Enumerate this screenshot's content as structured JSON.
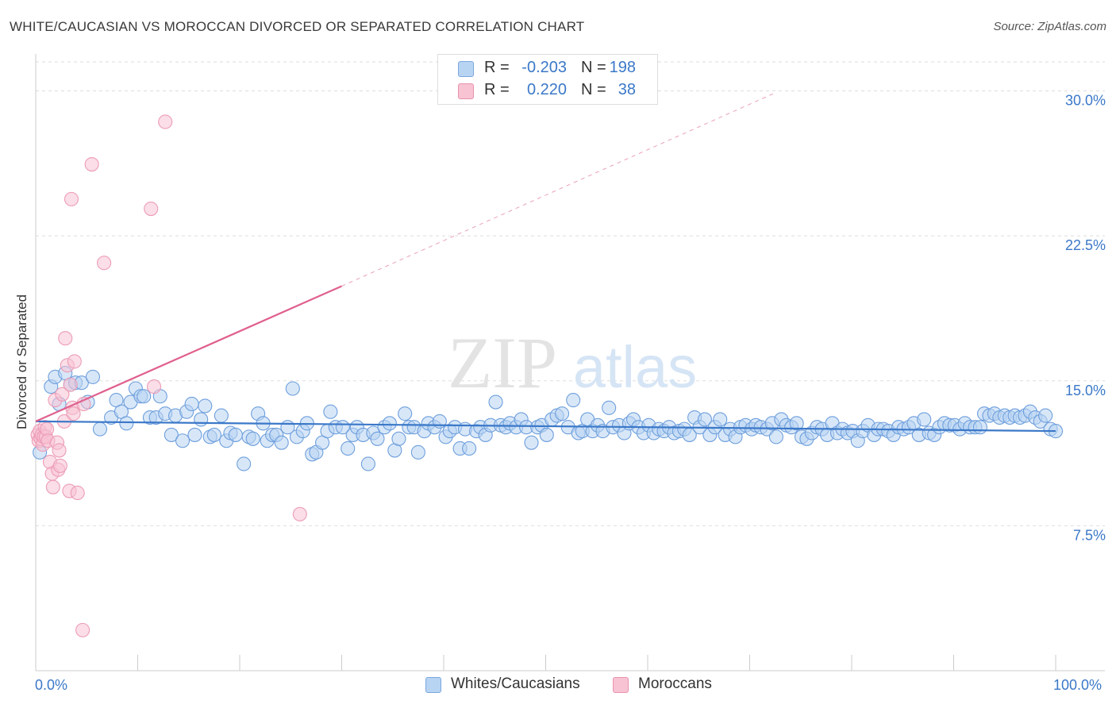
{
  "title": "WHITE/CAUCASIAN VS MOROCCAN DIVORCED OR SEPARATED CORRELATION CHART",
  "source": "Source: ZipAtlas.com",
  "watermark": {
    "zip": "ZIP",
    "atlas": "atlas"
  },
  "legend_top": {
    "rows": [
      {
        "r_label": "R =",
        "r_value": "-0.203",
        "n_label": "N =",
        "n_value": "198"
      },
      {
        "r_label": "R =",
        "r_value": "0.220",
        "n_label": "N =",
        "n_value": "38"
      }
    ]
  },
  "colors": {
    "blue": "#3b78c8",
    "blue_fill": "#b8d4f3",
    "pink": "#e0608e",
    "pink_fill": "#f8c3d3",
    "grid": "#dddddd"
  },
  "chart_data": {
    "type": "scatter",
    "title": "WHITE/CAUCASIAN VS MOROCCAN DIVORCED OR SEPARATED CORRELATION CHART",
    "ylabel": "Divorced or Separated",
    "xlabel": "",
    "xlim": [
      0,
      100
    ],
    "ylim": [
      0,
      31.5
    ],
    "y_ticks": [
      "7.5%",
      "15.0%",
      "22.5%",
      "30.0%"
    ],
    "y_tick_values": [
      7.5,
      15.0,
      22.5,
      30.0
    ],
    "x_tick_labels": [
      "0.0%",
      "100.0%"
    ],
    "grid": true,
    "legend_position": "bottom",
    "series": [
      {
        "name": "Whites/Caucasians",
        "color": "#3b78c8",
        "trend": {
          "x": [
            0,
            100
          ],
          "y": [
            12.9,
            12.4
          ]
        },
        "points": [
          [
            0.4,
            11.3
          ],
          [
            1.5,
            14.7
          ],
          [
            1.9,
            15.2
          ],
          [
            2.3,
            13.8
          ],
          [
            2.9,
            15.4
          ],
          [
            3.4,
            14.8
          ],
          [
            3.9,
            14.9
          ],
          [
            4.5,
            14.9
          ],
          [
            5.1,
            13.9
          ],
          [
            5.6,
            15.2
          ],
          [
            6.3,
            12.5
          ],
          [
            7.4,
            13.1
          ],
          [
            7.9,
            14.0
          ],
          [
            8.4,
            13.4
          ],
          [
            8.9,
            12.8
          ],
          [
            9.3,
            13.9
          ],
          [
            9.8,
            14.6
          ],
          [
            10.3,
            14.2
          ],
          [
            10.6,
            14.2
          ],
          [
            11.2,
            13.1
          ],
          [
            11.8,
            13.1
          ],
          [
            12.2,
            14.2
          ],
          [
            12.7,
            13.3
          ],
          [
            13.3,
            12.2
          ],
          [
            13.7,
            13.2
          ],
          [
            14.4,
            11.9
          ],
          [
            14.8,
            13.4
          ],
          [
            15.3,
            13.8
          ],
          [
            15.6,
            12.2
          ],
          [
            16.2,
            13.0
          ],
          [
            16.6,
            13.7
          ],
          [
            17.1,
            12.1
          ],
          [
            17.5,
            12.2
          ],
          [
            18.2,
            13.2
          ],
          [
            18.7,
            11.9
          ],
          [
            19.1,
            12.3
          ],
          [
            19.6,
            12.2
          ],
          [
            20.4,
            10.7
          ],
          [
            20.9,
            12.1
          ],
          [
            21.3,
            12.0
          ],
          [
            21.8,
            13.3
          ],
          [
            22.3,
            12.8
          ],
          [
            22.7,
            11.9
          ],
          [
            23.2,
            12.2
          ],
          [
            23.6,
            12.2
          ],
          [
            24.1,
            11.8
          ],
          [
            24.7,
            12.6
          ],
          [
            25.2,
            14.6
          ],
          [
            25.6,
            12.1
          ],
          [
            26.2,
            12.4
          ],
          [
            26.6,
            12.8
          ],
          [
            27.1,
            11.2
          ],
          [
            27.5,
            11.3
          ],
          [
            28.1,
            11.8
          ],
          [
            28.6,
            12.4
          ],
          [
            28.9,
            13.4
          ],
          [
            29.4,
            12.6
          ],
          [
            30.1,
            12.6
          ],
          [
            30.6,
            11.5
          ],
          [
            31.1,
            12.2
          ],
          [
            31.5,
            12.6
          ],
          [
            32.1,
            12.2
          ],
          [
            32.6,
            10.7
          ],
          [
            33.1,
            12.3
          ],
          [
            33.5,
            12.0
          ],
          [
            34.2,
            12.6
          ],
          [
            34.7,
            12.8
          ],
          [
            35.2,
            11.4
          ],
          [
            35.6,
            12.0
          ],
          [
            36.2,
            13.3
          ],
          [
            36.6,
            12.6
          ],
          [
            37.1,
            12.6
          ],
          [
            37.5,
            11.3
          ],
          [
            38.1,
            12.4
          ],
          [
            38.5,
            12.8
          ],
          [
            39.1,
            12.6
          ],
          [
            39.6,
            12.9
          ],
          [
            40.2,
            12.1
          ],
          [
            40.6,
            12.4
          ],
          [
            41.1,
            12.6
          ],
          [
            41.6,
            11.5
          ],
          [
            42.1,
            12.5
          ],
          [
            42.5,
            11.5
          ],
          [
            43.2,
            12.4
          ],
          [
            43.6,
            12.6
          ],
          [
            44.1,
            12.2
          ],
          [
            44.6,
            12.7
          ],
          [
            45.1,
            13.9
          ],
          [
            45.6,
            12.7
          ],
          [
            46.1,
            12.6
          ],
          [
            46.5,
            12.8
          ],
          [
            47.1,
            12.6
          ],
          [
            47.6,
            13.0
          ],
          [
            48.1,
            12.6
          ],
          [
            48.6,
            11.8
          ],
          [
            49.2,
            12.6
          ],
          [
            49.6,
            12.7
          ],
          [
            50.1,
            12.2
          ],
          [
            50.6,
            13.0
          ],
          [
            51.1,
            13.2
          ],
          [
            51.6,
            13.3
          ],
          [
            52.2,
            12.6
          ],
          [
            52.7,
            14.0
          ],
          [
            53.2,
            12.3
          ],
          [
            53.6,
            12.4
          ],
          [
            54.1,
            13.0
          ],
          [
            54.6,
            12.4
          ],
          [
            55.1,
            12.7
          ],
          [
            55.6,
            12.4
          ],
          [
            56.2,
            13.6
          ],
          [
            56.6,
            12.6
          ],
          [
            57.2,
            12.7
          ],
          [
            57.7,
            12.3
          ],
          [
            58.2,
            12.8
          ],
          [
            58.6,
            13.0
          ],
          [
            59.1,
            12.6
          ],
          [
            59.6,
            12.3
          ],
          [
            60.1,
            12.7
          ],
          [
            60.6,
            12.3
          ],
          [
            61.1,
            12.5
          ],
          [
            61.6,
            12.4
          ],
          [
            62.1,
            12.6
          ],
          [
            62.6,
            12.3
          ],
          [
            63.1,
            12.4
          ],
          [
            63.6,
            12.5
          ],
          [
            64.1,
            12.2
          ],
          [
            64.6,
            13.1
          ],
          [
            65.1,
            12.6
          ],
          [
            65.6,
            13.0
          ],
          [
            66.1,
            12.2
          ],
          [
            66.6,
            12.6
          ],
          [
            67.1,
            13.0
          ],
          [
            67.6,
            12.2
          ],
          [
            68.1,
            12.5
          ],
          [
            68.6,
            12.1
          ],
          [
            69.1,
            12.6
          ],
          [
            69.6,
            12.7
          ],
          [
            70.2,
            12.5
          ],
          [
            70.6,
            12.7
          ],
          [
            71.1,
            12.6
          ],
          [
            71.7,
            12.5
          ],
          [
            72.2,
            12.8
          ],
          [
            72.6,
            12.1
          ],
          [
            73.1,
            13.0
          ],
          [
            73.6,
            12.7
          ],
          [
            74.1,
            12.6
          ],
          [
            74.6,
            12.8
          ],
          [
            75.1,
            12.1
          ],
          [
            75.6,
            12.0
          ],
          [
            76.1,
            12.3
          ],
          [
            76.6,
            12.6
          ],
          [
            77.1,
            12.5
          ],
          [
            77.6,
            12.2
          ],
          [
            78.1,
            12.8
          ],
          [
            78.6,
            12.3
          ],
          [
            79.1,
            12.5
          ],
          [
            79.6,
            12.3
          ],
          [
            80.1,
            12.4
          ],
          [
            80.6,
            11.9
          ],
          [
            81.1,
            12.4
          ],
          [
            81.6,
            12.7
          ],
          [
            82.2,
            12.2
          ],
          [
            82.6,
            12.5
          ],
          [
            83.1,
            12.5
          ],
          [
            83.6,
            12.4
          ],
          [
            84.1,
            12.2
          ],
          [
            84.6,
            12.6
          ],
          [
            85.1,
            12.5
          ],
          [
            85.6,
            12.6
          ],
          [
            86.1,
            12.8
          ],
          [
            86.6,
            12.2
          ],
          [
            87.1,
            13.0
          ],
          [
            87.6,
            12.3
          ],
          [
            88.1,
            12.2
          ],
          [
            88.6,
            12.6
          ],
          [
            89.1,
            12.8
          ],
          [
            89.6,
            12.7
          ],
          [
            90.1,
            12.7
          ],
          [
            90.6,
            12.5
          ],
          [
            91.1,
            12.8
          ],
          [
            91.6,
            12.6
          ],
          [
            92.1,
            12.6
          ],
          [
            92.6,
            12.6
          ],
          [
            93.0,
            13.3
          ],
          [
            93.5,
            13.2
          ],
          [
            94.0,
            13.3
          ],
          [
            94.5,
            13.1
          ],
          [
            95.0,
            13.2
          ],
          [
            95.5,
            13.1
          ],
          [
            96.0,
            13.2
          ],
          [
            96.5,
            13.1
          ],
          [
            97.0,
            13.2
          ],
          [
            97.5,
            13.4
          ],
          [
            98.0,
            13.1
          ],
          [
            98.5,
            12.9
          ],
          [
            99.0,
            13.2
          ],
          [
            99.5,
            12.5
          ],
          [
            100,
            12.4
          ]
        ]
      },
      {
        "name": "Moroccans",
        "color": "#e0608e",
        "trend": {
          "x": [
            0,
            30
          ],
          "y": [
            12.9,
            19.9
          ],
          "dashed_to": {
            "x": 72.5,
            "y": 29.9
          }
        },
        "points": [
          [
            0.2,
            12.2
          ],
          [
            0.3,
            11.9
          ],
          [
            0.4,
            12.4
          ],
          [
            0.5,
            12.0
          ],
          [
            0.6,
            12.2
          ],
          [
            0.7,
            11.7
          ],
          [
            0.8,
            12.1
          ],
          [
            0.9,
            12.6
          ],
          [
            1.0,
            12.1
          ],
          [
            1.1,
            12.5
          ],
          [
            1.2,
            11.9
          ],
          [
            1.4,
            10.8
          ],
          [
            1.6,
            10.2
          ],
          [
            1.7,
            9.5
          ],
          [
            1.9,
            14.0
          ],
          [
            2.1,
            11.8
          ],
          [
            2.2,
            10.4
          ],
          [
            2.3,
            11.4
          ],
          [
            2.4,
            10.6
          ],
          [
            2.6,
            14.3
          ],
          [
            2.8,
            12.9
          ],
          [
            2.9,
            17.2
          ],
          [
            3.1,
            15.8
          ],
          [
            3.3,
            9.3
          ],
          [
            3.4,
            14.8
          ],
          [
            3.5,
            24.4
          ],
          [
            3.6,
            13.6
          ],
          [
            3.7,
            13.3
          ],
          [
            3.8,
            16.0
          ],
          [
            4.1,
            9.2
          ],
          [
            4.6,
            2.1
          ],
          [
            4.7,
            13.8
          ],
          [
            5.5,
            26.2
          ],
          [
            6.7,
            21.1
          ],
          [
            11.3,
            23.9
          ],
          [
            11.6,
            14.7
          ],
          [
            12.7,
            28.4
          ],
          [
            25.9,
            8.1
          ]
        ]
      }
    ]
  },
  "legend_bottom": [
    {
      "label": "Whites/Caucasians"
    },
    {
      "label": "Moroccans"
    }
  ]
}
